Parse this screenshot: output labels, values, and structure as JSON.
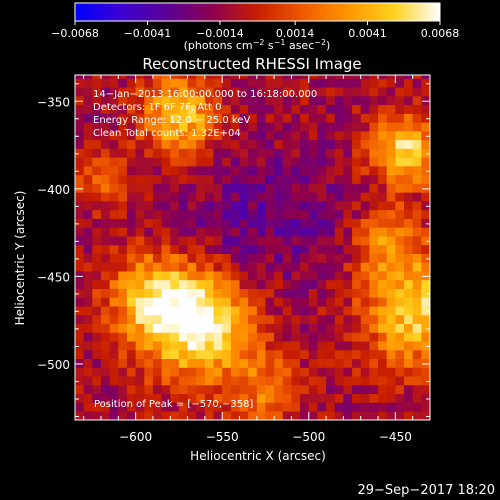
{
  "chart_data": {
    "type": "heatmap",
    "title": "Reconstructed RHESSI Image",
    "xlabel": "Heliocentric X (arcsec)",
    "ylabel": "Heliocentric Y (arcsec)",
    "xlim": [
      -635,
      -430
    ],
    "ylim": [
      -532,
      -335
    ],
    "xticks": [
      -600,
      -550,
      -500,
      -450
    ],
    "yticks": [
      -350,
      -400,
      -450,
      -500
    ],
    "colorbar": {
      "range": [
        -0.0068,
        0.0068
      ],
      "ticks": [
        -0.0068,
        -0.0041,
        -0.0014,
        0.0014,
        0.0041,
        0.0068
      ],
      "tick_labels": [
        "−0.0068",
        "−0.0041",
        "−0.0014",
        "0.0014",
        "0.0041",
        "0.0068"
      ],
      "unit_text": "(photons cm",
      "unit_sup1": "−2",
      "unit_mid": " s",
      "unit_sup2": "−1",
      "unit_end": " asec",
      "unit_sup3": "−2",
      "unit_close": ")",
      "colormap": [
        "#0000ff",
        "#3c00d2",
        "#5a0096",
        "#8c0050",
        "#c81e00",
        "#f05a00",
        "#ff9600",
        "#ffd21e",
        "#ffffff"
      ]
    },
    "annotations": [
      "14−Jan−2013 16:00:00.000 to 16:18:00.000",
      "Detectors: 1F 6F 7F, Att 0",
      "Energy Range: 12.0 − 25.0 keV",
      "Clean     Total counts: 1.32E+04"
    ],
    "peak_label": "Position of Peak = [−570,−358]",
    "peak": [
      -570,
      -358
    ],
    "sources": [
      {
        "x": -563,
        "y": -478,
        "sigma": 22,
        "amp": 1.0
      },
      {
        "x": -590,
        "y": -462,
        "sigma": 18,
        "amp": 0.7
      },
      {
        "x": -575,
        "y": -358,
        "sigma": 16,
        "amp": 0.8
      },
      {
        "x": -445,
        "y": -378,
        "sigma": 14,
        "amp": 0.9
      },
      {
        "x": -438,
        "y": -470,
        "sigma": 22,
        "amp": 0.85
      },
      {
        "x": -455,
        "y": -430,
        "sigma": 14,
        "amp": 0.5
      },
      {
        "x": -525,
        "y": -515,
        "sigma": 14,
        "amp": 0.45
      },
      {
        "x": -620,
        "y": -395,
        "sigma": 12,
        "amp": 0.35
      }
    ],
    "dark_center": {
      "x": -525,
      "y": -418
    }
  },
  "footer": {
    "timestamp": "29−Sep−2017 18:20"
  }
}
